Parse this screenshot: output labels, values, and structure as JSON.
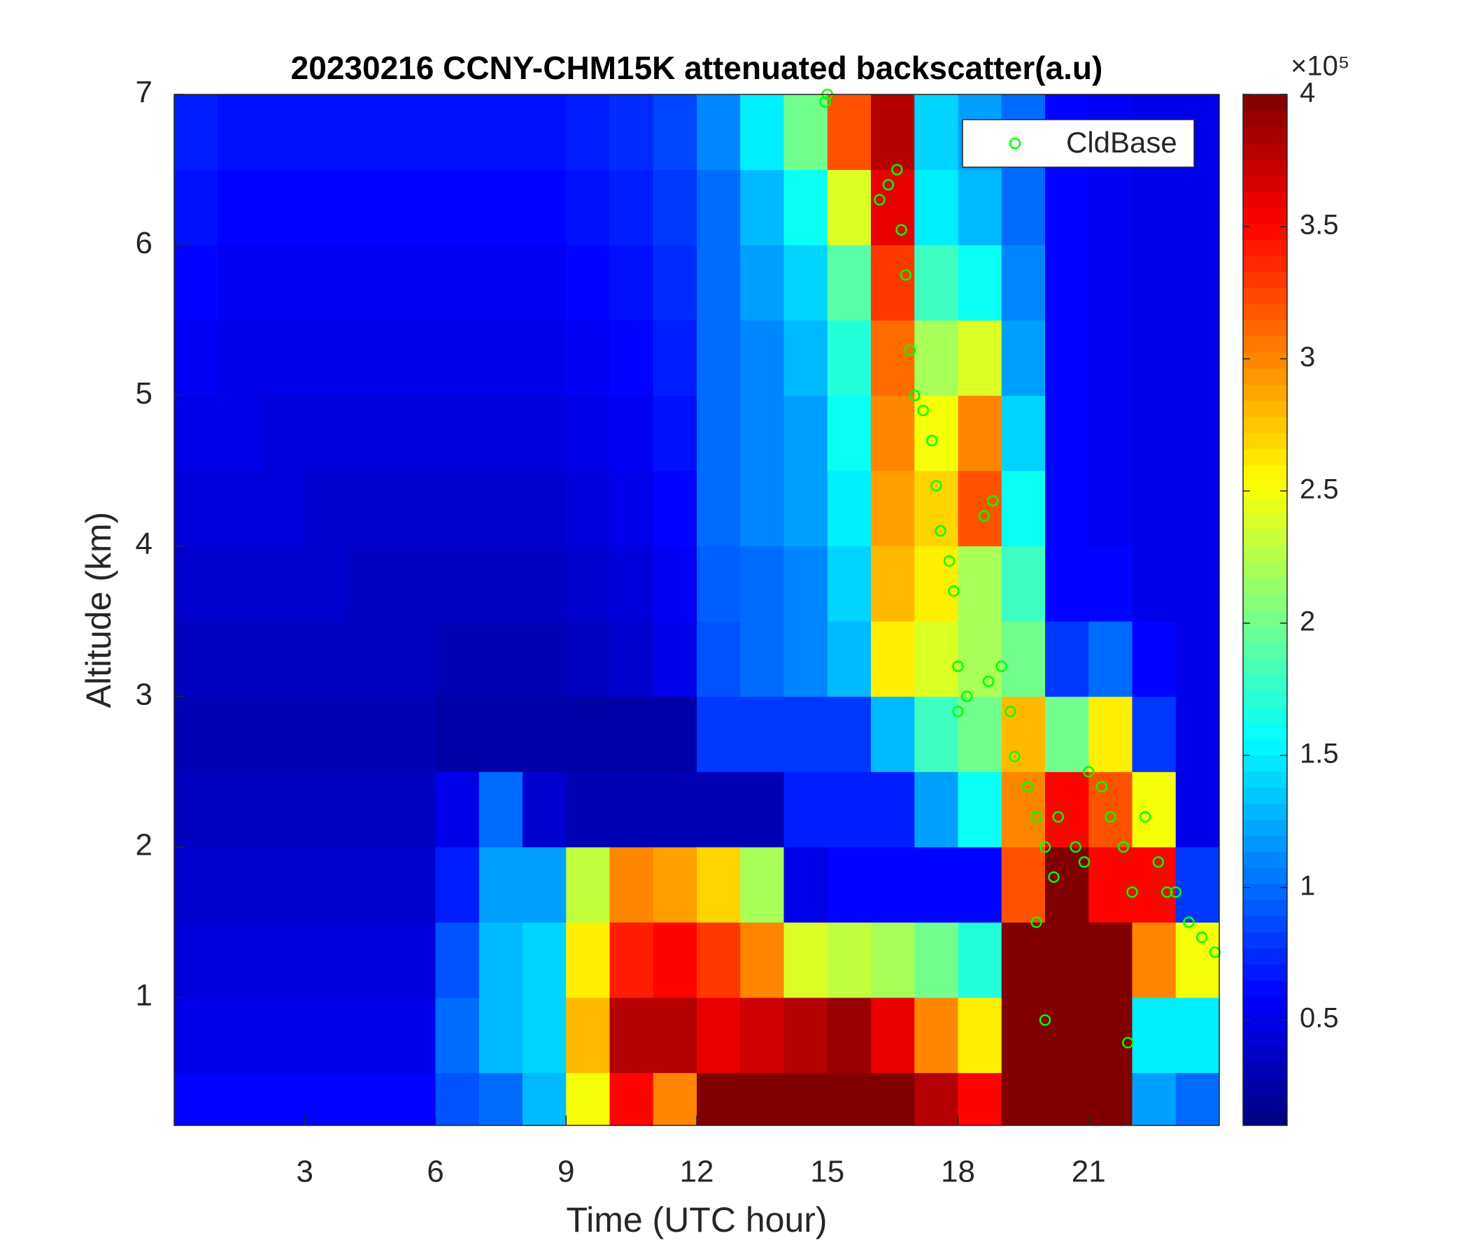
{
  "chart_data": {
    "type": "heatmap",
    "title": "20230216 CCNY-CHM15K attenuated backscatter(a.u)",
    "x_label": "Time (UTC hour)",
    "y_label": "Altitude (km)",
    "xlim": [
      0,
      24
    ],
    "xticks": [
      3,
      6,
      9,
      12,
      15,
      18,
      21
    ],
    "ylim": [
      0.15,
      7
    ],
    "yticks": [
      1,
      2,
      3,
      4,
      5,
      6,
      7
    ],
    "colormap": "jet",
    "clim": [
      0.1,
      4
    ],
    "cticks": [
      0.5,
      1,
      1.5,
      2,
      2.5,
      3,
      3.5,
      4
    ],
    "colorbar_exponent": "×10⁵",
    "xbins": [
      0,
      1,
      2,
      3,
      4,
      5,
      6,
      7,
      8,
      9,
      10,
      11,
      12,
      13,
      14,
      15,
      16,
      17,
      18,
      19,
      20,
      21,
      22,
      23,
      24
    ],
    "ybins": [
      0.15,
      0.5,
      1,
      1.5,
      2,
      2.5,
      3,
      3.5,
      4,
      4.5,
      5,
      5.5,
      6,
      6.5,
      7
    ],
    "z": [
      [
        0.6,
        0.6,
        0.6,
        0.6,
        0.6,
        0.6,
        0.9,
        1.0,
        1.3,
        2.5,
        3.5,
        3.0,
        4,
        4,
        4,
        4,
        4,
        3.8,
        3.5,
        4,
        4,
        4,
        1.2,
        1.0
      ],
      [
        0.5,
        0.5,
        0.5,
        0.5,
        0.5,
        0.5,
        1.0,
        1.3,
        1.4,
        2.8,
        3.8,
        3.8,
        3.6,
        3.7,
        3.8,
        3.9,
        3.6,
        3.0,
        2.6,
        4,
        4,
        4,
        1.5,
        1.5
      ],
      [
        0.45,
        0.45,
        0.45,
        0.45,
        0.45,
        0.45,
        0.9,
        1.3,
        1.4,
        2.6,
        3.4,
        3.5,
        3.3,
        3.0,
        2.4,
        2.3,
        2.2,
        2.0,
        1.7,
        4,
        4,
        4,
        3.0,
        2.5
      ],
      [
        0.4,
        0.4,
        0.4,
        0.4,
        0.4,
        0.4,
        0.7,
        1.2,
        1.2,
        2.3,
        3.0,
        2.9,
        2.7,
        2.2,
        0.5,
        0.6,
        0.6,
        0.6,
        0.6,
        3.2,
        4,
        3.5,
        3.5,
        0.8
      ],
      [
        0.35,
        0.35,
        0.35,
        0.35,
        0.35,
        0.35,
        0.5,
        1.0,
        0.4,
        0.3,
        0.3,
        0.3,
        0.3,
        0.3,
        0.7,
        0.7,
        0.7,
        1.2,
        1.6,
        3.0,
        3.5,
        3.2,
        2.5,
        0.5
      ],
      [
        0.3,
        0.3,
        0.3,
        0.3,
        0.3,
        0.3,
        0.25,
        0.25,
        0.25,
        0.25,
        0.25,
        0.25,
        0.8,
        0.8,
        0.8,
        0.8,
        1.3,
        1.8,
        2.0,
        2.8,
        2.0,
        2.6,
        0.8,
        0.5
      ],
      [
        0.35,
        0.35,
        0.35,
        0.35,
        0.35,
        0.35,
        0.3,
        0.3,
        0.3,
        0.35,
        0.4,
        0.5,
        0.9,
        1.0,
        1.1,
        1.3,
        2.6,
        2.4,
        2.2,
        2.0,
        0.8,
        1.0,
        0.6,
        0.5
      ],
      [
        0.4,
        0.4,
        0.4,
        0.4,
        0.35,
        0.35,
        0.35,
        0.35,
        0.35,
        0.4,
        0.45,
        0.55,
        0.95,
        1.0,
        1.1,
        1.4,
        2.8,
        2.6,
        2.2,
        1.8,
        0.6,
        0.6,
        0.5,
        0.5
      ],
      [
        0.45,
        0.45,
        0.45,
        0.4,
        0.4,
        0.4,
        0.4,
        0.4,
        0.4,
        0.45,
        0.5,
        0.6,
        1.0,
        1.1,
        1.2,
        1.5,
        2.9,
        2.7,
        3.2,
        1.6,
        0.6,
        0.55,
        0.5,
        0.5
      ],
      [
        0.5,
        0.5,
        0.45,
        0.45,
        0.45,
        0.45,
        0.45,
        0.45,
        0.45,
        0.5,
        0.55,
        0.65,
        1.0,
        1.1,
        1.2,
        1.6,
        3.0,
        2.5,
        3.0,
        1.4,
        0.6,
        0.55,
        0.5,
        0.5
      ],
      [
        0.55,
        0.5,
        0.5,
        0.5,
        0.5,
        0.5,
        0.5,
        0.5,
        0.5,
        0.55,
        0.6,
        0.7,
        1.0,
        1.1,
        1.3,
        1.7,
        3.1,
        2.2,
        2.4,
        1.2,
        0.6,
        0.55,
        0.5,
        0.5
      ],
      [
        0.6,
        0.55,
        0.55,
        0.55,
        0.55,
        0.55,
        0.55,
        0.55,
        0.55,
        0.6,
        0.65,
        0.75,
        1.0,
        1.2,
        1.4,
        1.9,
        3.3,
        1.8,
        1.6,
        1.1,
        0.6,
        0.55,
        0.5,
        0.5
      ],
      [
        0.65,
        0.6,
        0.6,
        0.6,
        0.6,
        0.6,
        0.6,
        0.6,
        0.6,
        0.65,
        0.7,
        0.8,
        1.0,
        1.3,
        1.6,
        2.4,
        3.6,
        1.5,
        1.3,
        1.0,
        0.6,
        0.55,
        0.5,
        0.5
      ],
      [
        0.7,
        0.65,
        0.65,
        0.65,
        0.65,
        0.65,
        0.65,
        0.65,
        0.65,
        0.7,
        0.75,
        0.85,
        1.1,
        1.5,
        2.0,
        3.2,
        3.8,
        1.4,
        1.2,
        1.0,
        0.6,
        0.55,
        0.5,
        0.5
      ]
    ],
    "series": [
      {
        "name": "CldBase",
        "type": "scatter",
        "color": "#00ff00",
        "x": [
          15.0,
          14.95,
          16.2,
          16.4,
          16.6,
          16.7,
          16.8,
          16.9,
          17.0,
          17.2,
          17.4,
          17.5,
          17.6,
          17.8,
          17.9,
          18.0,
          18.0,
          18.2,
          18.6,
          18.8,
          18.7,
          19.0,
          19.2,
          19.3,
          19.6,
          19.8,
          20.0,
          20.2,
          19.8,
          20.3,
          20.7,
          20.9,
          21.0,
          21.3,
          21.5,
          21.8,
          22.0,
          21.9,
          22.3,
          22.6,
          22.8,
          23.0,
          23.3,
          23.6,
          23.9,
          20.0
        ],
        "y": [
          7.0,
          6.95,
          6.3,
          6.4,
          6.5,
          6.1,
          5.8,
          5.3,
          5.0,
          4.9,
          4.7,
          4.4,
          4.1,
          3.9,
          3.7,
          3.2,
          2.9,
          3.0,
          4.2,
          4.3,
          3.1,
          3.2,
          2.9,
          2.6,
          2.4,
          2.2,
          2.0,
          1.8,
          1.5,
          2.2,
          2.0,
          1.9,
          2.5,
          2.4,
          2.2,
          2.0,
          1.7,
          0.7,
          2.2,
          1.9,
          1.7,
          1.7,
          1.5,
          1.4,
          1.3,
          0.85
        ]
      }
    ],
    "legend": "top-right"
  }
}
